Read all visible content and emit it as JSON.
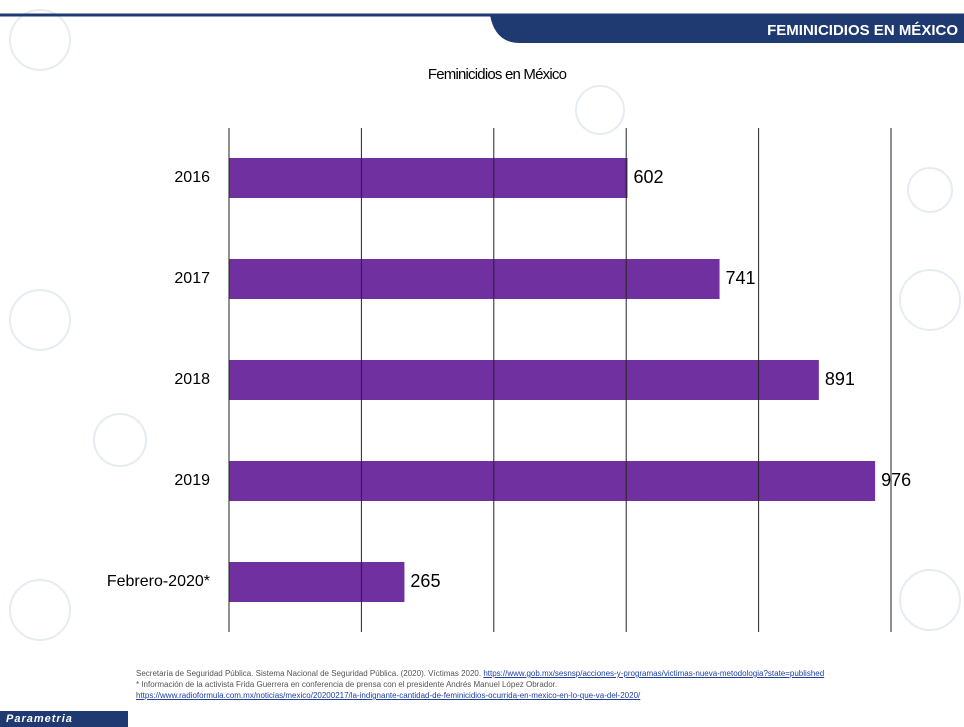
{
  "header": "FEMINICIDIOS EN MÉXICO",
  "chart_data": {
    "type": "barh",
    "title": "Feminicidios en México",
    "categories": [
      "2016",
      "2017",
      "2018",
      "2019",
      "Febrero-2020*"
    ],
    "values": [
      602,
      741,
      891,
      976,
      265
    ],
    "color": "#7030a0",
    "xlim": [
      0,
      1000
    ],
    "xticks": [
      0,
      200,
      400,
      600,
      800,
      1000
    ],
    "grid": true
  },
  "sources": [
    {
      "text": "Secretaría de Seguridad Pública. Sistema Nacional de Seguridad Pública. (2020). Víctimas 2020.",
      "url": "https://www.gob.mx/sesnsp/acciones-y-programas/victimas-nueva-metodologia?state=published"
    },
    {
      "text": "* Información de la activista Frida Guerrera en conferencia de prensa con el presidente Andrés Manuel López Obrador."
    },
    {
      "url": "https://www.radioformula.com.mx/noticias/mexico/20200217/la-indignante-cantidad-de-feminicidios-ocurrida-en-mexico-en-lo-que-va-del-2020/"
    }
  ],
  "logo": "Parametria"
}
